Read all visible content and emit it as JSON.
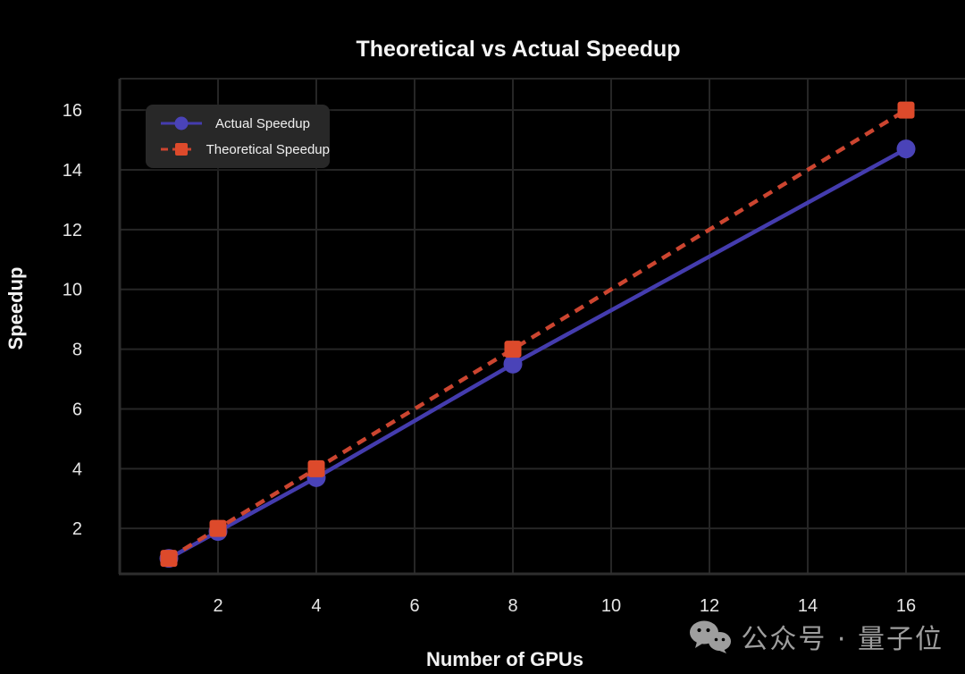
{
  "chart_data": {
    "type": "line",
    "title": "Theoretical vs Actual Speedup",
    "xlabel": "Number of GPUs",
    "ylabel": "Speedup",
    "x": [
      1,
      2,
      4,
      8,
      16
    ],
    "series": [
      {
        "name": "Actual Speedup",
        "values": [
          1.0,
          1.9,
          3.7,
          7.5,
          14.7
        ],
        "color": "#4a43b8",
        "line_color": "#443cae",
        "style": "solid",
        "marker": "circle"
      },
      {
        "name": "Theoretical Speedup",
        "values": [
          1,
          2,
          4,
          8,
          16
        ],
        "color": "#dd4a2b",
        "line_color": "#cc4530",
        "style": "dashed",
        "marker": "square"
      }
    ],
    "x_ticks": [
      2,
      4,
      6,
      8,
      10,
      12,
      14,
      16
    ],
    "y_ticks": [
      2,
      4,
      6,
      8,
      10,
      12,
      14,
      16
    ],
    "xlim": [
      0,
      17.2
    ],
    "ylim": [
      0.48,
      17.05
    ],
    "grid": true,
    "legend_position": "upper-left",
    "background": "#000000",
    "grid_color": "#262626",
    "axis_color": "#2e2e2e",
    "tick_color": "#e6e6e6"
  },
  "watermark": {
    "icon": "wechat-icon",
    "text": "公众号 · 量子位",
    "color": "#9e9e9e"
  }
}
